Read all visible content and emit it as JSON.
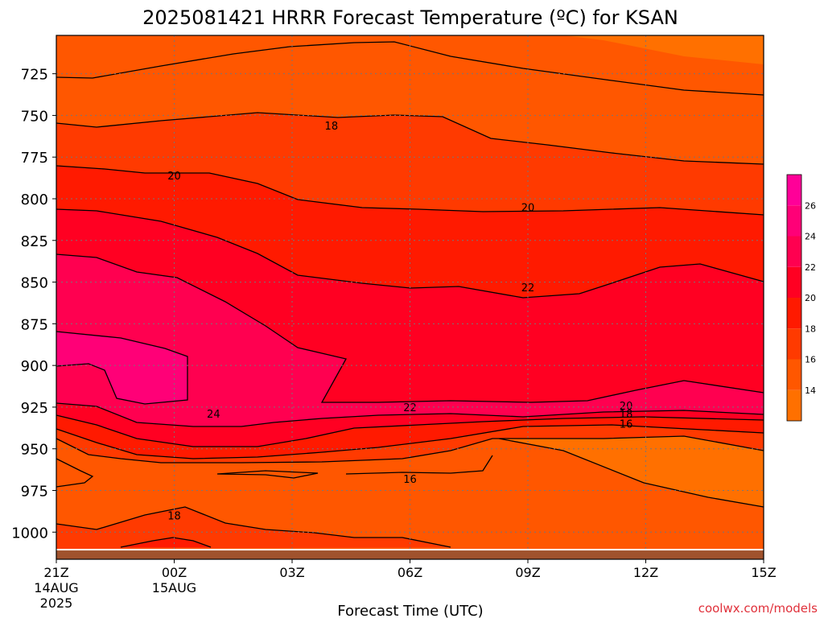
{
  "chart_data": {
    "type": "heatmap",
    "title": "2025081421 HRRR Forecast Temperature (ºC) for KSAN",
    "xlabel": "Forecast Time (UTC)",
    "ylabel": "",
    "x_ticks": [
      {
        "value": 0,
        "label": "21Z",
        "sub1": "14AUG",
        "sub2": "2025"
      },
      {
        "value": 3,
        "label": "00Z",
        "sub1": "15AUG",
        "sub2": ""
      },
      {
        "value": 6,
        "label": "03Z",
        "sub1": "",
        "sub2": ""
      },
      {
        "value": 9,
        "label": "06Z",
        "sub1": "",
        "sub2": ""
      },
      {
        "value": 12,
        "label": "09Z",
        "sub1": "",
        "sub2": ""
      },
      {
        "value": 15,
        "label": "12Z",
        "sub1": "",
        "sub2": ""
      },
      {
        "value": 18,
        "label": "15Z",
        "sub1": "",
        "sub2": ""
      }
    ],
    "xlim": [
      0,
      18
    ],
    "y_ticks": [
      725,
      750,
      775,
      800,
      825,
      850,
      875,
      900,
      925,
      950,
      975,
      1000
    ],
    "ylim": [
      1010,
      702
    ],
    "surface_pressure": 1011,
    "colorbar": {
      "ticks": [
        14,
        16,
        18,
        20,
        22,
        24,
        26
      ],
      "levels": [
        12,
        14,
        16,
        18,
        20,
        22,
        24,
        26,
        28
      ],
      "colors": [
        "#ff7000",
        "#ff5700",
        "#ff3a00",
        "#ff1a00",
        "#ff0022",
        "#ff0050",
        "#ff0077",
        "#ff0098"
      ]
    },
    "contour_labels": [
      {
        "text": "18",
        "x": 7,
        "p": 756
      },
      {
        "text": "20",
        "x": 3,
        "p": 786
      },
      {
        "text": "20",
        "x": 12,
        "p": 805
      },
      {
        "text": "22",
        "x": 12,
        "p": 853
      },
      {
        "text": "24",
        "x": 4,
        "p": 929
      },
      {
        "text": "22",
        "x": 9,
        "p": 925
      },
      {
        "text": "20",
        "x": 14.5,
        "p": 924
      },
      {
        "text": "18",
        "x": 14.5,
        "p": 929
      },
      {
        "text": "16",
        "x": 14.5,
        "p": 935
      },
      {
        "text": "16",
        "x": 9,
        "p": 968
      },
      {
        "text": "18",
        "x": 3,
        "p": 990
      }
    ],
    "credit": "coolwx.com/models"
  }
}
